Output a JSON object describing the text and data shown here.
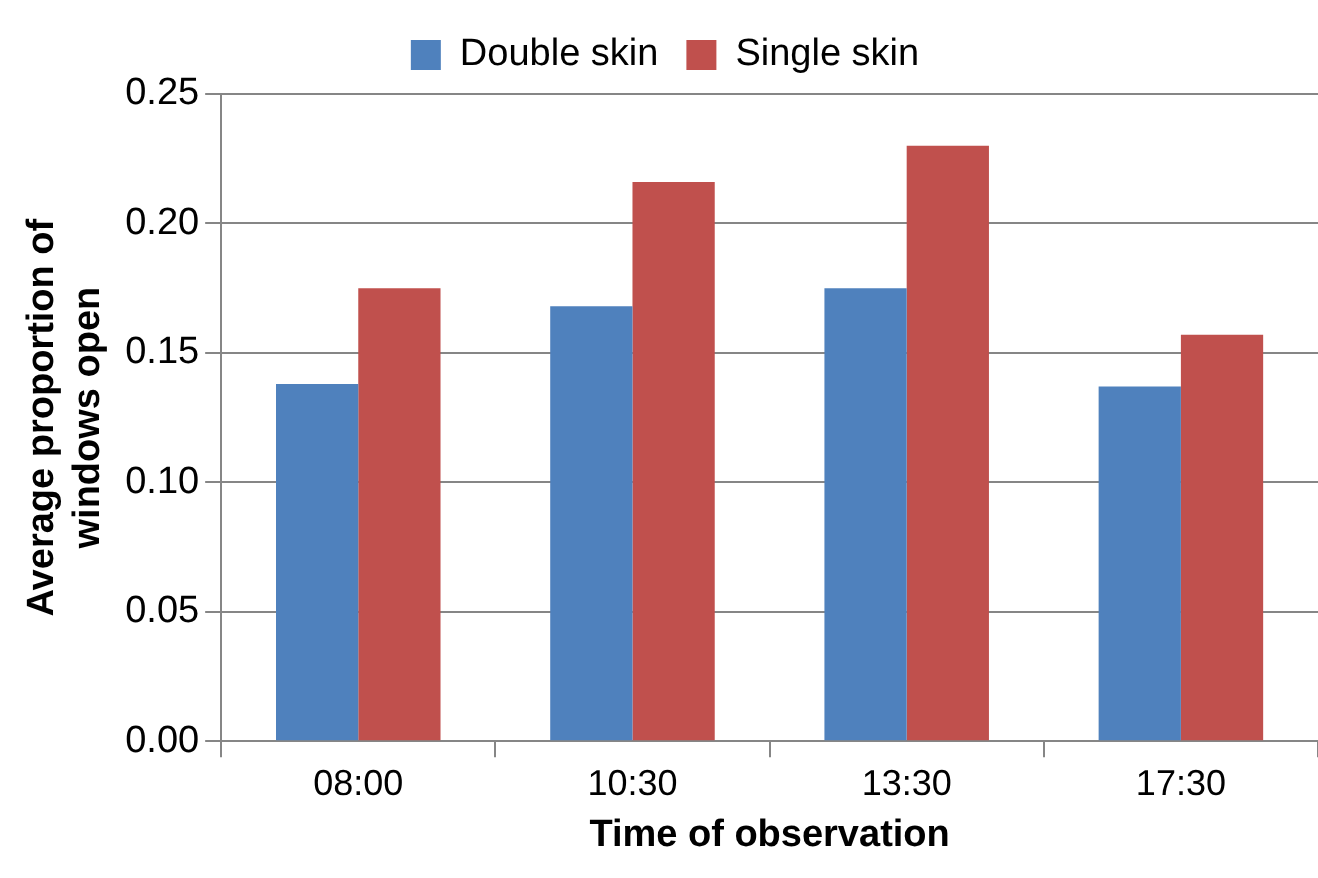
{
  "chart_data": {
    "type": "bar",
    "xlabel": "Time of observation",
    "ylabel": "Average proportion of windows open",
    "categories": [
      "08:00",
      "10:30",
      "13:30",
      "17:30"
    ],
    "series": [
      {
        "name": "Double skin",
        "color": "#4f81bd",
        "values": [
          0.138,
          0.168,
          0.175,
          0.137
        ]
      },
      {
        "name": "Single skin",
        "color": "#c0504d",
        "values": [
          0.175,
          0.216,
          0.23,
          0.157
        ]
      }
    ],
    "ylim": [
      0,
      0.25
    ],
    "yticks": [
      {
        "value": 0,
        "label": "0.00"
      },
      {
        "value": 0.05,
        "label": "0.05"
      },
      {
        "value": 0.1,
        "label": "0.10"
      },
      {
        "value": 0.15,
        "label": "0.15"
      },
      {
        "value": 0.2,
        "label": "0.20"
      },
      {
        "value": 0.25,
        "label": "0.25"
      }
    ],
    "grid": "y",
    "legend": "top"
  }
}
